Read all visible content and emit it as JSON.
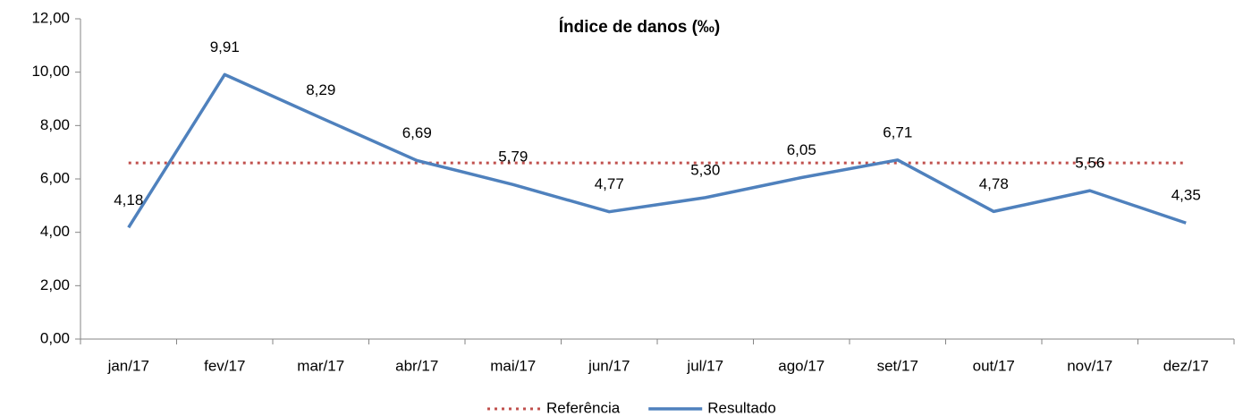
{
  "chart_data": {
    "type": "line",
    "title": "Índice de danos (‰)",
    "categories": [
      "jan/17",
      "fev/17",
      "mar/17",
      "abr/17",
      "mai/17",
      "jun/17",
      "jul/17",
      "ago/17",
      "set/17",
      "out/17",
      "nov/17",
      "dez/17"
    ],
    "series": [
      {
        "name": "Referência",
        "color": "#c0504d",
        "style": "dotted",
        "values": [
          6.6,
          6.6,
          6.6,
          6.6,
          6.6,
          6.6,
          6.6,
          6.6,
          6.6,
          6.6,
          6.6,
          6.6
        ]
      },
      {
        "name": "Resultado",
        "color": "#4f81bd",
        "style": "solid",
        "values": [
          4.18,
          9.91,
          8.29,
          6.69,
          5.79,
          4.77,
          5.3,
          6.05,
          6.71,
          4.78,
          5.56,
          4.35
        ],
        "value_labels": [
          "4,18",
          "9,91",
          "8,29",
          "6,69",
          "5,79",
          "4,77",
          "5,30",
          "6,05",
          "6,71",
          "4,78",
          "5,56",
          "4,35"
        ]
      }
    ],
    "ylim": [
      0,
      12
    ],
    "yticks": [
      {
        "value": 0,
        "label": "0,00"
      },
      {
        "value": 2,
        "label": "2,00"
      },
      {
        "value": 4,
        "label": "4,00"
      },
      {
        "value": 6,
        "label": "6,00"
      },
      {
        "value": 8,
        "label": "8,00"
      },
      {
        "value": 10,
        "label": "10,00"
      },
      {
        "value": 12,
        "label": "12,00"
      }
    ],
    "legend": "bottom"
  }
}
